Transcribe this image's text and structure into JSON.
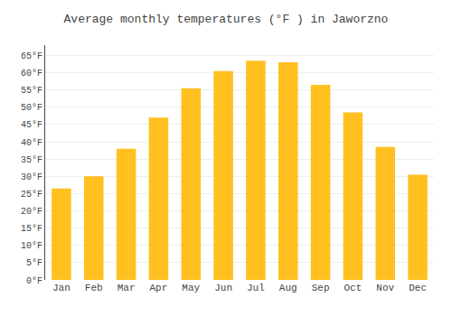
{
  "chart_data": {
    "type": "bar",
    "title": "Average monthly temperatures (°F ) in Jaworzno",
    "categories": [
      "Jan",
      "Feb",
      "Mar",
      "Apr",
      "May",
      "Jun",
      "Jul",
      "Aug",
      "Sep",
      "Oct",
      "Nov",
      "Dec"
    ],
    "values": [
      26.5,
      30.0,
      38.0,
      47.0,
      55.5,
      60.5,
      63.5,
      63.0,
      56.5,
      48.5,
      38.5,
      30.5
    ],
    "color": "#FFC020",
    "ylim": [
      0,
      68
    ],
    "yticks": [
      {
        "value": 0,
        "label": "0°F"
      },
      {
        "value": 5,
        "label": "5°F"
      },
      {
        "value": 10,
        "label": "10°F"
      },
      {
        "value": 15,
        "label": "15°F"
      },
      {
        "value": 20,
        "label": "20°F"
      },
      {
        "value": 25,
        "label": "25°F"
      },
      {
        "value": 30,
        "label": "30°F"
      },
      {
        "value": 35,
        "label": "35°F"
      },
      {
        "value": 40,
        "label": "40°F"
      },
      {
        "value": 45,
        "label": "45°F"
      },
      {
        "value": 50,
        "label": "50°F"
      },
      {
        "value": 55,
        "label": "55°F"
      },
      {
        "value": 60,
        "label": "60°F"
      },
      {
        "value": 65,
        "label": "65°F"
      }
    ],
    "grid": true
  }
}
